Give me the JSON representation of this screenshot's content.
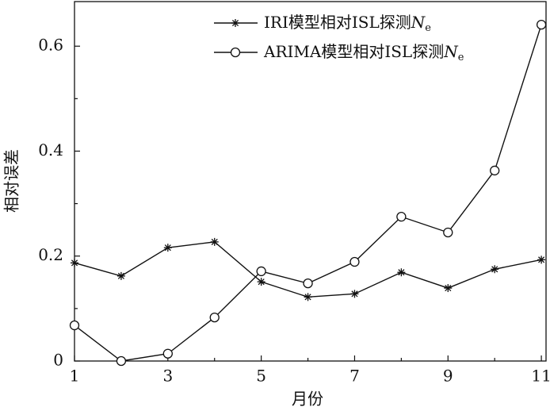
{
  "chart_data": {
    "type": "line",
    "x_label": "月份",
    "y_label": "相对误差",
    "xlim": [
      1,
      11.1
    ],
    "xticks": [
      1,
      3,
      5,
      7,
      9,
      11
    ],
    "ylim": [
      0,
      0.685
    ],
    "yticks": [
      0,
      0.2,
      0.4,
      0.6
    ],
    "legend": "upper right",
    "series": [
      {
        "name": "IRI模型相对ISL探测Ne",
        "color": "#111111",
        "marker": "asterisk",
        "x": [
          1,
          2,
          3,
          4,
          5,
          6,
          7,
          8,
          9,
          10,
          11
        ],
        "values": [
          0.187,
          0.162,
          0.216,
          0.227,
          0.151,
          0.122,
          0.128,
          0.169,
          0.139,
          0.175,
          0.193
        ]
      },
      {
        "name": "ARIMA模型相对ISL探测Ne",
        "color": "#111111",
        "marker": "circle",
        "x": [
          1,
          2,
          3,
          4,
          5,
          6,
          7,
          8,
          9,
          10,
          11
        ],
        "values": [
          0.068,
          0.0,
          0.014,
          0.083,
          0.171,
          0.148,
          0.189,
          0.275,
          0.245,
          0.363,
          0.641
        ]
      }
    ]
  }
}
